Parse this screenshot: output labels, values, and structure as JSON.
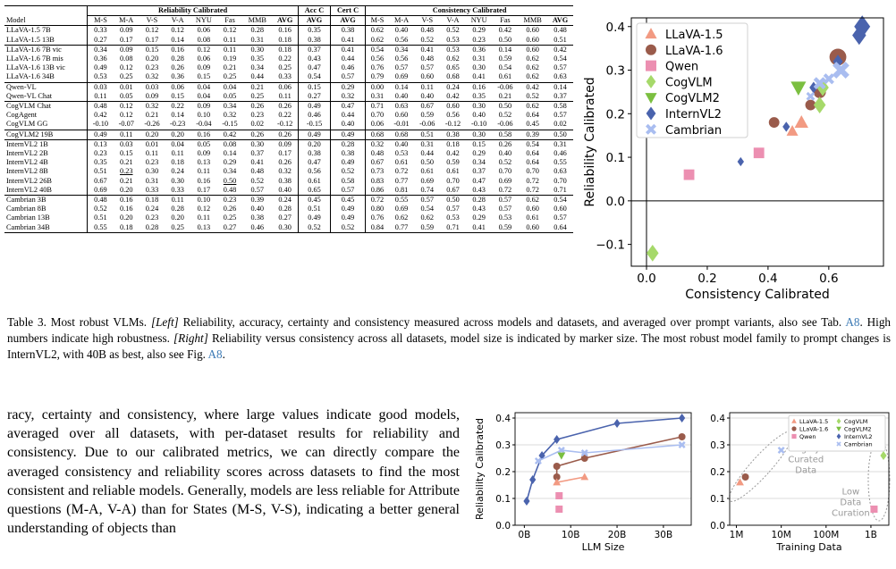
{
  "table": {
    "group_headers": {
      "reliability": "Reliability Calibrated",
      "acc": "Acc C",
      "cert": "Cert C",
      "consistency": "Consistency Calibrated"
    },
    "columns": [
      "Model",
      "M-S",
      "M-A",
      "V-S",
      "V-A",
      "NYU",
      "Fas",
      "MMB",
      "AVG",
      "AVG",
      "AVG",
      "M-S",
      "M-A",
      "V-S",
      "V-A",
      "NYU",
      "Fas",
      "MMB",
      "AVG"
    ],
    "groups": [
      [
        [
          "LLaVA-1.5 7B",
          "0.33",
          "0.09",
          "0.12",
          "0.12",
          "0.06",
          "0.12",
          "0.28",
          "0.16",
          "0.35",
          "0.38",
          "0.62",
          "0.40",
          "0.48",
          "0.52",
          "0.29",
          "0.42",
          "0.60",
          "0.48"
        ],
        [
          "LLaVA-1.5 13B",
          "0.27",
          "0.17",
          "0.17",
          "0.14",
          "0.08",
          "0.11",
          "0.31",
          "0.18",
          "0.38",
          "0.41",
          "0.62",
          "0.56",
          "0.52",
          "0.53",
          "0.23",
          "0.50",
          "0.60",
          "0.51"
        ]
      ],
      [
        [
          "LLaVA-1.6 7B vic",
          "0.34",
          "0.09",
          "0.15",
          "0.16",
          "0.12",
          "0.11",
          "0.30",
          "0.18",
          "0.37",
          "0.41",
          "0.54",
          "0.34",
          "0.41",
          "0.53",
          "0.36",
          "0.14",
          "0.60",
          "0.42"
        ],
        [
          "LLaVA-1.6 7B mis",
          "0.36",
          "0.08",
          "0.20",
          "0.28",
          "0.06",
          "0.19",
          "0.35",
          "0.22",
          "0.43",
          "0.44",
          "0.56",
          "0.56",
          "0.48",
          "0.62",
          "0.31",
          "0.59",
          "0.62",
          "0.54"
        ],
        [
          "LLaVA-1.6 13B vic",
          "0.49",
          "0.12",
          "0.23",
          "0.26",
          "0.09",
          "0.21",
          "0.34",
          "0.25",
          "0.47",
          "0.46",
          "0.76",
          "0.57",
          "0.57",
          "0.65",
          "0.30",
          "0.54",
          "0.62",
          "0.57"
        ],
        [
          "LLaVA-1.6 34B",
          "0.53",
          "0.25",
          "0.32",
          "0.36",
          "0.15",
          "0.25",
          "0.44",
          "0.33",
          "0.54",
          "0.57",
          "0.79",
          "0.69",
          "0.60",
          "0.68",
          "0.41",
          "0.61",
          "0.62",
          "0.63"
        ]
      ],
      [
        [
          "Qwen-VL",
          "0.03",
          "0.01",
          "0.03",
          "0.06",
          "0.04",
          "0.04",
          "0.21",
          "0.06",
          "0.15",
          "0.29",
          "0.00",
          "0.14",
          "0.11",
          "0.24",
          "0.16",
          "-0.06",
          "0.42",
          "0.14"
        ],
        [
          "Qwen-VL Chat",
          "0.11",
          "0.05",
          "0.09",
          "0.15",
          "0.04",
          "0.05",
          "0.25",
          "0.11",
          "0.27",
          "0.32",
          "0.31",
          "0.40",
          "0.40",
          "0.42",
          "0.35",
          "0.21",
          "0.52",
          "0.37"
        ]
      ],
      [
        [
          "CogVLM Chat",
          "0.48",
          "0.12",
          "0.32",
          "0.22",
          "0.09",
          "0.34",
          "0.26",
          "0.26",
          "0.49",
          "0.47",
          "0.71",
          "0.63",
          "0.67",
          "0.60",
          "0.30",
          "0.50",
          "0.62",
          "0.58"
        ],
        [
          "CogAgent",
          "0.42",
          "0.12",
          "0.21",
          "0.14",
          "0.10",
          "0.32",
          "0.23",
          "0.22",
          "0.46",
          "0.44",
          "0.70",
          "0.60",
          "0.59",
          "0.56",
          "0.40",
          "0.52",
          "0.64",
          "0.57"
        ],
        [
          "CogVLM GG",
          "-0.10",
          "-0.07",
          "-0.26",
          "-0.23",
          "-0.04",
          "-0.15",
          "0.02",
          "-0.12",
          "-0.15",
          "0.40",
          "0.06",
          "-0.01",
          "-0.06",
          "-0.12",
          "-0.10",
          "-0.06",
          "0.45",
          "0.02"
        ]
      ],
      [
        [
          "CogVLM2 19B",
          "0.49",
          "0.11",
          "0.20",
          "0.20",
          "0.16",
          "0.42",
          "0.26",
          "0.26",
          "0.49",
          "0.49",
          "0.68",
          "0.68",
          "0.51",
          "0.38",
          "0.30",
          "0.58",
          "0.39",
          "0.50"
        ]
      ],
      [
        [
          "InternVL2 1B",
          "0.13",
          "0.03",
          "0.01",
          "0.04",
          "0.05",
          "0.08",
          "0.30",
          "0.09",
          "0.20",
          "0.28",
          "0.32",
          "0.40",
          "0.31",
          "0.18",
          "0.15",
          "0.26",
          "0.54",
          "0.31"
        ],
        [
          "InternVL2 2B",
          "0.23",
          "0.15",
          "0.11",
          "0.11",
          "0.09",
          "0.14",
          "0.37",
          "0.17",
          "0.38",
          "0.38",
          "0.48",
          "0.53",
          "0.44",
          "0.42",
          "0.29",
          "0.40",
          "0.64",
          "0.46"
        ],
        [
          "InternVL2 4B",
          "0.35",
          "0.21",
          "0.23",
          "0.18",
          "0.13",
          "0.29",
          "0.41",
          "0.26",
          "0.47",
          "0.49",
          "0.67",
          "0.61",
          "0.50",
          "0.59",
          "0.34",
          "0.52",
          "0.64",
          "0.55"
        ],
        [
          "InternVL2 8B",
          "0.51",
          "0.23",
          "0.30",
          "0.24",
          "0.11",
          "0.34",
          "0.48",
          "0.32",
          "0.56",
          "0.52",
          "0.73",
          "0.72",
          "0.61",
          "0.61",
          "0.37",
          "0.70",
          "0.70",
          "0.63"
        ],
        [
          "InternVL2 26B",
          "0.67",
          "0.21",
          "0.31",
          "0.30",
          "0.16",
          "0.50",
          "0.52",
          "0.38",
          "0.61",
          "0.58",
          "0.83",
          "0.77",
          "0.69",
          "0.70",
          "0.47",
          "0.69",
          "0.72",
          "0.70"
        ],
        [
          "InternVL2 40B",
          "0.69",
          "0.20",
          "0.33",
          "0.33",
          "0.17",
          "0.48",
          "0.57",
          "0.40",
          "0.65",
          "0.57",
          "0.86",
          "0.81",
          "0.74",
          "0.67",
          "0.43",
          "0.72",
          "0.72",
          "0.71"
        ]
      ],
      [
        [
          "Cambrian 3B",
          "0.48",
          "0.16",
          "0.18",
          "0.11",
          "0.10",
          "0.23",
          "0.39",
          "0.24",
          "0.45",
          "0.45",
          "0.72",
          "0.55",
          "0.57",
          "0.50",
          "0.28",
          "0.57",
          "0.62",
          "0.54"
        ],
        [
          "Cambrian 8B",
          "0.52",
          "0.16",
          "0.24",
          "0.28",
          "0.12",
          "0.26",
          "0.40",
          "0.28",
          "0.51",
          "0.49",
          "0.80",
          "0.69",
          "0.54",
          "0.57",
          "0.43",
          "0.57",
          "0.60",
          "0.60"
        ],
        [
          "Cambrian 13B",
          "0.51",
          "0.20",
          "0.23",
          "0.20",
          "0.11",
          "0.25",
          "0.38",
          "0.27",
          "0.49",
          "0.49",
          "0.76",
          "0.62",
          "0.62",
          "0.53",
          "0.29",
          "0.53",
          "0.61",
          "0.57"
        ],
        [
          "Cambrian 34B",
          "0.55",
          "0.18",
          "0.28",
          "0.25",
          "0.13",
          "0.27",
          "0.46",
          "0.30",
          "0.52",
          "0.52",
          "0.84",
          "0.77",
          "0.59",
          "0.71",
          "0.41",
          "0.59",
          "0.60",
          "0.64"
        ]
      ]
    ],
    "bold_cells": {
      "InternVL2 40B": [
        1,
        8,
        9,
        11,
        12,
        13,
        16,
        17,
        18
      ],
      "InternVL2 26B": [
        6,
        10,
        15,
        17
      ],
      "LLaVA-1.6 34B": [
        4
      ],
      "InternVL2 8B": [
        2,
        15
      ],
      "Cambrian 34B": [
        14
      ]
    },
    "underlined_cells": {
      "InternVL2 8B": [
        2
      ],
      "InternVL2 26B": [
        6
      ]
    }
  },
  "caption": {
    "label": "Table 3. Most robust VLMs.",
    "left_tag": "[Left]",
    "part1": " Reliability, accuracy, certainty and consistency measured across models and datasets, and averaged over prompt variants, also see Tab. ",
    "ref1": "A8",
    "part2": ". High numbers indicate high robustness. ",
    "right_tag": "[Right]",
    "part3": " Reliability versus consistency across all datasets, model size is indicated by marker size. The most robust model family to prompt changes is InternVL2, with 40B as best, also see Fig. ",
    "ref2": "A8",
    "part4": "."
  },
  "body_text": "racy, certainty and consistency, where large values indicate good models, averaged over all datasets, with per-dataset results for reliability and consistency. Due to our calibrated metrics, we can directly compare the averaged consistency and reliability scores across datasets to find the most consistent and reliable models. Generally, models are less reliable for Attribute questions (M-A, V-A) than for States (M-S, V-S), indicating a better general understanding of objects than",
  "chart_data": [
    {
      "type": "scatter",
      "xlabel": "Consistency Calibrated",
      "ylabel": "Reliability Calibrated",
      "xlim": [
        -0.05,
        0.78
      ],
      "ylim": [
        -0.15,
        0.42
      ],
      "xticks": [
        "0.0",
        "0.2",
        "0.4",
        "0.6"
      ],
      "yticks": [
        "−0.1",
        "0.0",
        "0.1",
        "0.2",
        "0.3",
        "0.4"
      ],
      "legend_position": "top-left",
      "series": [
        {
          "name": "LLaVA-1.5",
          "marker": "triangle-up",
          "color": "#f29a82",
          "points": [
            {
              "x": 0.48,
              "y": 0.16,
              "size": 7
            },
            {
              "x": 0.51,
              "y": 0.18,
              "size": 13
            }
          ]
        },
        {
          "name": "LLaVA-1.6",
          "marker": "circle",
          "color": "#9a5b4b",
          "points": [
            {
              "x": 0.42,
              "y": 0.18,
              "size": 7
            },
            {
              "x": 0.54,
              "y": 0.22,
              "size": 7
            },
            {
              "x": 0.57,
              "y": 0.25,
              "size": 13
            },
            {
              "x": 0.63,
              "y": 0.33,
              "size": 34
            }
          ]
        },
        {
          "name": "Qwen",
          "marker": "square",
          "color": "#ec8fb1",
          "points": [
            {
              "x": 0.14,
              "y": 0.06,
              "size": 7
            },
            {
              "x": 0.37,
              "y": 0.11,
              "size": 7
            }
          ]
        },
        {
          "name": "CogVLM",
          "marker": "diamond",
          "color": "#a6d96a",
          "points": [
            {
              "x": 0.02,
              "y": -0.12,
              "size": 17
            },
            {
              "x": 0.57,
              "y": 0.22,
              "size": 17
            },
            {
              "x": 0.58,
              "y": 0.26,
              "size": 17
            }
          ]
        },
        {
          "name": "CogVLM2",
          "marker": "triangle-down",
          "color": "#7bbf40",
          "points": [
            {
              "x": 0.5,
              "y": 0.26,
              "size": 19
            }
          ]
        },
        {
          "name": "InternVL2",
          "marker": "diamond",
          "color": "#4a63ad",
          "points": [
            {
              "x": 0.31,
              "y": 0.09,
              "size": 1
            },
            {
              "x": 0.46,
              "y": 0.17,
              "size": 2
            },
            {
              "x": 0.55,
              "y": 0.26,
              "size": 4
            },
            {
              "x": 0.63,
              "y": 0.32,
              "size": 8
            },
            {
              "x": 0.7,
              "y": 0.38,
              "size": 26
            },
            {
              "x": 0.71,
              "y": 0.4,
              "size": 40
            }
          ]
        },
        {
          "name": "Cambrian",
          "marker": "x",
          "color": "#a9bdf0",
          "points": [
            {
              "x": 0.54,
              "y": 0.24,
              "size": 3
            },
            {
              "x": 0.57,
              "y": 0.27,
              "size": 13
            },
            {
              "x": 0.6,
              "y": 0.28,
              "size": 8
            },
            {
              "x": 0.64,
              "y": 0.3,
              "size": 34
            }
          ]
        }
      ]
    },
    {
      "type": "line",
      "xlabel": "LLM Size",
      "ylabel": "Reliability Calibrated",
      "xlim": [
        -2,
        36
      ],
      "ylim": [
        0,
        0.42
      ],
      "xticks": [
        "0B",
        "10B",
        "20B",
        "30B"
      ],
      "yticks": [
        "0.0",
        "0.1",
        "0.2",
        "0.3",
        "0.4"
      ],
      "series": [
        {
          "marker": "diamond",
          "color": "#4a63ad",
          "points": [
            {
              "x": 0.5,
              "y": 0.09
            },
            {
              "x": 1.8,
              "y": 0.17
            },
            {
              "x": 3.8,
              "y": 0.26
            },
            {
              "x": 7,
              "y": 0.32
            },
            {
              "x": 20,
              "y": 0.38
            },
            {
              "x": 34,
              "y": 0.4
            }
          ]
        },
        {
          "marker": "circle",
          "color": "#9a5b4b",
          "points": [
            {
              "x": 7,
              "y": 0.18
            },
            {
              "x": 7,
              "y": 0.22
            },
            {
              "x": 13,
              "y": 0.25
            },
            {
              "x": 34,
              "y": 0.33
            }
          ]
        },
        {
          "marker": "x",
          "color": "#a9bdf0",
          "points": [
            {
              "x": 3,
              "y": 0.24
            },
            {
              "x": 8,
              "y": 0.28
            },
            {
              "x": 13,
              "y": 0.27
            },
            {
              "x": 34,
              "y": 0.3
            }
          ]
        },
        {
          "marker": "triangle-up",
          "color": "#f29a82",
          "points": [
            {
              "x": 7,
              "y": 0.16
            },
            {
              "x": 13,
              "y": 0.18
            }
          ]
        },
        {
          "marker": "square",
          "color": "#ec8fb1",
          "points": [
            {
              "x": 7.5,
              "y": 0.06
            },
            {
              "x": 7.5,
              "y": 0.11
            }
          ]
        },
        {
          "marker": "triangle-down",
          "color": "#7bbf40",
          "points": [
            {
              "x": 8,
              "y": 0.26
            }
          ]
        }
      ]
    },
    {
      "type": "scatter",
      "xlabel": "Training Data",
      "ylabel": "",
      "xlim": [
        5.85,
        9.4
      ],
      "ylim": [
        0,
        0.42
      ],
      "xticks": [
        "1M",
        "10M",
        "100M",
        "1B"
      ],
      "yticks": [
        "0.0",
        "0.1",
        "0.2",
        "0.3",
        "0.4"
      ],
      "legend_position": "top-right",
      "legend": [
        "LLaVA-1.5",
        "LLaVA-1.6",
        "Qwen",
        "CogVLM",
        "CogVLM2",
        "InternVL2",
        "Cambrian"
      ],
      "annotations": [
        "Highly\nCurated\nData",
        "Low\nData\nCuration"
      ],
      "series": [
        {
          "marker": "triangle-up",
          "color": "#f29a82",
          "points": [
            {
              "x": 6.08,
              "y": 0.16
            }
          ]
        },
        {
          "marker": "circle",
          "color": "#9a5b4b",
          "points": [
            {
              "x": 6.2,
              "y": 0.18
            }
          ]
        },
        {
          "marker": "x",
          "color": "#a9bdf0",
          "points": [
            {
              "x": 7.0,
              "y": 0.28
            }
          ]
        },
        {
          "marker": "square",
          "color": "#ec8fb1",
          "points": [
            {
              "x": 9.07,
              "y": 0.06
            }
          ]
        },
        {
          "marker": "diamond",
          "color": "#a6d96a",
          "points": [
            {
              "x": 9.28,
              "y": 0.26
            }
          ]
        }
      ]
    }
  ]
}
